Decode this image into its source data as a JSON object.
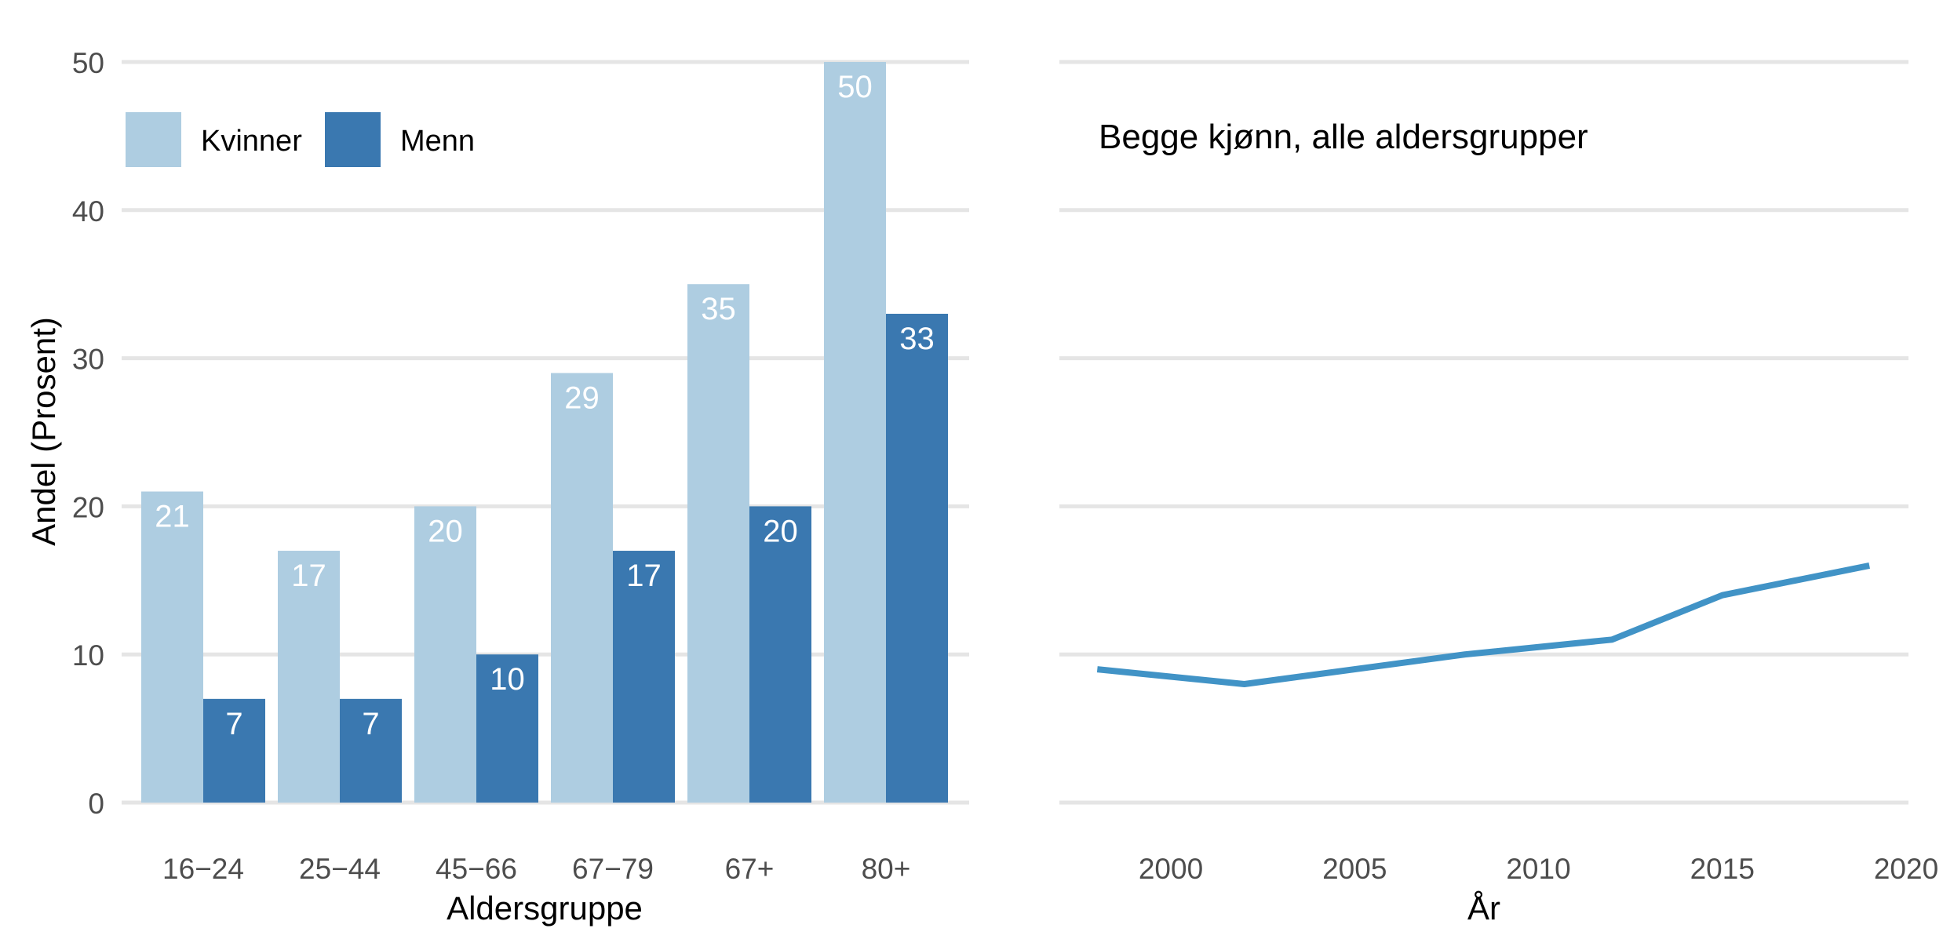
{
  "colors": {
    "women": "#aecde1",
    "men": "#3a78b0",
    "line": "#4193c6",
    "grid": "#e5e5e5",
    "tick_text": "#4d4d4d",
    "bar_label": "#ffffff",
    "title_text": "#000000"
  },
  "chart_data": [
    {
      "type": "bar",
      "title": "",
      "xlabel": "Aldersgruppe",
      "ylabel": "Andel (Prosent)",
      "ylim": [
        0,
        50
      ],
      "yticks": [
        "0",
        "10",
        "20",
        "30",
        "40",
        "50"
      ],
      "grid": "horizontal",
      "legend_position": "top-left",
      "categories": [
        "16−24",
        "25−44",
        "45−66",
        "67−79",
        "67+",
        "80+"
      ],
      "series": [
        {
          "name": "Kvinner",
          "values": [
            21,
            17,
            20,
            29,
            35,
            50
          ]
        },
        {
          "name": "Menn",
          "values": [
            7,
            7,
            10,
            17,
            20,
            33
          ]
        }
      ],
      "data_labels": true
    },
    {
      "type": "line",
      "annotation": "Begge kjønn, alle aldersgrupper",
      "xlabel": "År",
      "ylabel": "",
      "xlim": [
        1996.5,
        2020
      ],
      "ylim": [
        0,
        50
      ],
      "xticks": [
        "2000",
        "2005",
        "2010",
        "2015",
        "2020"
      ],
      "grid": "horizontal",
      "x": [
        1998,
        2002,
        2008,
        2012,
        2015,
        2019
      ],
      "series": [
        {
          "values": [
            9,
            8,
            10,
            11,
            14,
            16
          ]
        }
      ]
    }
  ]
}
